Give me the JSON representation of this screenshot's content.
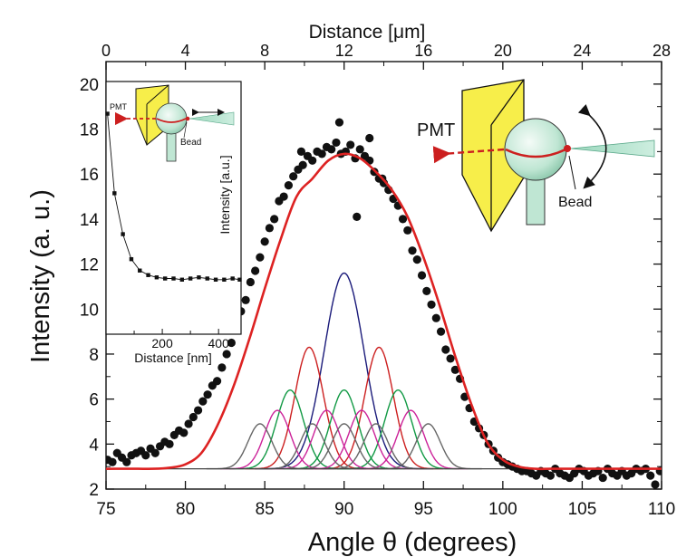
{
  "chart_data": [
    {
      "type": "scatter",
      "title": "",
      "xlabel": "Angle θ (degrees)",
      "ylabel": "Intensity (a. u.)",
      "xlim": [
        75,
        110
      ],
      "ylim": [
        2,
        21
      ],
      "x_ticks": [
        75,
        80,
        85,
        90,
        95,
        100,
        105,
        110
      ],
      "y_ticks": [
        2,
        4,
        6,
        8,
        10,
        12,
        14,
        16,
        18,
        20
      ],
      "top_axis": {
        "label": "Distance [μm]",
        "range": [
          0,
          28
        ],
        "ticks": [
          0,
          4,
          8,
          12,
          16,
          20,
          24,
          28
        ]
      },
      "baseline": 2.9,
      "series": [
        {
          "name": "measured",
          "kind": "points",
          "color": "#111111",
          "x": [
            75.1,
            75.4,
            75.7,
            76.0,
            76.3,
            76.6,
            76.9,
            77.2,
            77.5,
            77.8,
            78.1,
            78.4,
            78.7,
            79.0,
            79.3,
            79.6,
            79.9,
            80.2,
            80.5,
            80.8,
            81.1,
            81.4,
            81.7,
            82.0,
            82.3,
            82.6,
            82.9,
            83.2,
            83.5,
            83.8,
            84.1,
            84.4,
            84.7,
            85.0,
            85.3,
            85.6,
            85.9,
            86.2,
            86.5,
            86.8,
            87.1,
            87.4,
            87.7,
            88.0,
            88.3,
            88.6,
            88.9,
            89.2,
            89.5,
            89.8,
            90.1,
            90.4,
            90.7,
            91.0,
            91.3,
            91.6,
            91.9,
            92.2,
            92.5,
            92.8,
            93.1,
            93.4,
            93.7,
            94.0,
            94.3,
            94.6,
            94.9,
            95.2,
            95.5,
            95.8,
            96.1,
            96.4,
            96.7,
            97.0,
            97.3,
            97.6,
            97.9,
            98.2,
            98.5,
            98.8,
            99.1,
            99.4,
            99.7,
            100.0,
            100.3,
            100.6,
            100.9,
            101.2,
            101.5,
            101.8,
            102.1,
            102.4,
            102.7,
            103.0,
            103.3,
            103.6,
            103.9,
            104.2,
            104.5,
            104.8,
            105.1,
            105.4,
            105.7,
            106.0,
            106.3,
            106.6,
            106.9,
            107.2,
            107.5,
            107.8,
            108.1,
            108.4,
            108.7,
            109.0,
            109.3,
            109.6,
            109.9,
            89.7,
            91.6,
            87.3,
            92.4,
            90.8
          ],
          "y": [
            3.3,
            3.2,
            3.6,
            3.4,
            3.2,
            3.5,
            3.6,
            3.7,
            3.5,
            3.8,
            3.6,
            3.9,
            4.1,
            4.0,
            4.4,
            4.6,
            4.5,
            4.9,
            5.2,
            5.5,
            5.9,
            6.2,
            6.6,
            6.8,
            7.4,
            8.0,
            8.5,
            9.1,
            9.9,
            10.4,
            11.2,
            11.7,
            12.3,
            13.0,
            13.6,
            14.0,
            14.8,
            15.0,
            15.5,
            15.9,
            16.2,
            16.4,
            16.8,
            16.6,
            17.0,
            16.9,
            17.2,
            17.1,
            17.4,
            16.9,
            17.0,
            17.3,
            16.7,
            17.1,
            16.8,
            16.6,
            16.1,
            15.8,
            15.6,
            15.3,
            14.9,
            14.6,
            14.0,
            13.5,
            12.6,
            12.2,
            11.5,
            10.8,
            10.2,
            9.6,
            9.0,
            8.2,
            7.8,
            7.3,
            6.9,
            6.1,
            5.6,
            5.0,
            4.7,
            4.4,
            4.0,
            3.7,
            3.4,
            3.2,
            3.1,
            3.0,
            2.9,
            2.8,
            2.8,
            2.7,
            2.6,
            2.8,
            2.7,
            2.6,
            2.9,
            2.7,
            2.6,
            2.5,
            2.7,
            2.9,
            2.8,
            2.6,
            2.7,
            2.8,
            2.5,
            2.9,
            2.7,
            2.6,
            2.8,
            2.6,
            2.7,
            2.9,
            2.8,
            2.9,
            2.6,
            2.2,
            2.8,
            18.3,
            17.6,
            17.0,
            15.8,
            14.1
          ]
        },
        {
          "name": "fit",
          "kind": "line",
          "color": "#dd2222",
          "x": [
            75,
            76,
            77,
            78,
            79,
            80,
            81,
            82,
            83,
            84,
            85,
            86,
            87,
            88,
            89,
            90,
            91,
            92,
            93,
            94,
            95,
            96,
            97,
            98,
            99,
            100,
            101,
            102,
            103,
            104,
            105,
            106,
            107,
            108,
            109,
            110
          ],
          "y": [
            2.9,
            2.9,
            2.9,
            2.9,
            2.95,
            3.1,
            3.6,
            4.8,
            6.5,
            8.6,
            10.9,
            13.1,
            15.0,
            15.8,
            16.6,
            16.9,
            16.7,
            16.1,
            15.3,
            14.1,
            12.3,
            10.2,
            7.9,
            5.8,
            4.1,
            3.3,
            3.0,
            2.9,
            2.9,
            2.9,
            2.9,
            2.9,
            2.9,
            2.9,
            2.9,
            2.9
          ]
        },
        {
          "name": "component-center",
          "kind": "gaussian",
          "color": "#1a1a7a",
          "center": 90.0,
          "peak": 11.6,
          "sigma": 1.25
        },
        {
          "name": "component-red",
          "kind": "gaussian",
          "color": "#cc1f1f",
          "centers": [
            87.8,
            92.2
          ],
          "peak": 8.3,
          "sigma": 0.9
        },
        {
          "name": "component-green",
          "kind": "gaussian",
          "color": "#119944",
          "centers": [
            86.6,
            90.0,
            93.4
          ],
          "peak": 6.4,
          "sigma": 0.85
        },
        {
          "name": "component-magenta",
          "kind": "gaussian",
          "color": "#cc2299",
          "centers": [
            85.8,
            88.9,
            91.1,
            94.2
          ],
          "peak": 5.5,
          "sigma": 0.8
        },
        {
          "name": "component-gray",
          "kind": "gaussian",
          "color": "#666666",
          "centers": [
            84.7,
            88.0,
            90.0,
            92.0,
            95.3
          ],
          "peak": 4.9,
          "sigma": 0.75
        }
      ]
    },
    {
      "type": "line",
      "name": "inset",
      "title": "",
      "xlabel": "Distance [nm]",
      "ylabel": "Intensity [a.u.]",
      "xlim": [
        0,
        480
      ],
      "ylim": [
        0,
        1
      ],
      "x_ticks": [
        200,
        400
      ],
      "series": [
        {
          "name": "decay",
          "color": "#111111",
          "x": [
            5,
            30,
            60,
            90,
            120,
            150,
            180,
            210,
            240,
            270,
            300,
            330,
            360,
            390,
            420,
            450,
            475
          ],
          "y": [
            0.97,
            0.62,
            0.44,
            0.33,
            0.28,
            0.26,
            0.25,
            0.245,
            0.245,
            0.24,
            0.245,
            0.25,
            0.245,
            0.24,
            0.24,
            0.245,
            0.24
          ]
        }
      ]
    }
  ],
  "diagram": {
    "pmt_label": "PMT",
    "bead_label": "Bead",
    "colors": {
      "prism": "#f7ee4a",
      "sphere": "#bfe6d3",
      "beam": "#cc1f1f",
      "cone": "#8fd3b5"
    }
  }
}
